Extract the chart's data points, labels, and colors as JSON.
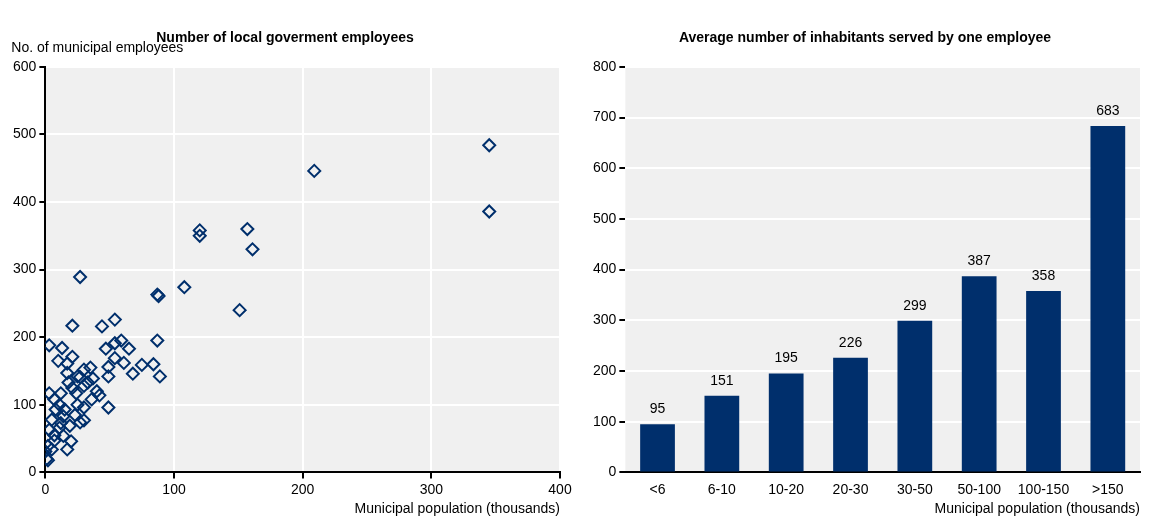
{
  "chart_data": [
    {
      "type": "scatter",
      "title": "Number of local goverment employees",
      "xlabel": "Municipal population (thousands)",
      "ylabel": "No. of municipal employees",
      "x": [
        345,
        345,
        209,
        120,
        120,
        157,
        161,
        108,
        87,
        88,
        151,
        27,
        21,
        44,
        54,
        87,
        89,
        84,
        75,
        68,
        65,
        61,
        59,
        54,
        47,
        49,
        49,
        49,
        54,
        3,
        13,
        10,
        21,
        17,
        30,
        35,
        37,
        27,
        40,
        42,
        36,
        30,
        21,
        18,
        12,
        3,
        7,
        11,
        25,
        30,
        23,
        14,
        5,
        30,
        27,
        19,
        11,
        3,
        14,
        20,
        17,
        5,
        1,
        0,
        2,
        7,
        15,
        8,
        2,
        7,
        12,
        24,
        33,
        25,
        17
      ],
      "values": [
        484,
        386,
        446,
        358,
        350,
        360,
        330,
        274,
        263,
        261,
        240,
        289,
        217,
        216,
        226,
        195,
        142,
        160,
        159,
        146,
        183,
        162,
        195,
        191,
        183,
        156,
        142,
        96,
        169,
        188,
        184,
        165,
        171,
        161,
        152,
        155,
        139,
        141,
        120,
        114,
        108,
        128,
        125,
        133,
        117,
        117,
        108,
        100,
        100,
        96,
        85,
        83,
        78,
        77,
        74,
        69,
        66,
        63,
        54,
        46,
        34,
        34,
        20,
        31,
        39,
        47,
        93,
        93,
        18,
        55,
        73,
        117,
        133,
        142,
        147
      ],
      "color": "#002f6c",
      "marker": "diamond",
      "xlim": [
        0,
        400
      ],
      "xticks": [
        0,
        100,
        200,
        300,
        400
      ],
      "ylim": [
        0,
        600
      ],
      "yticks": [
        0,
        100,
        200,
        300,
        400,
        500,
        600
      ],
      "grid": true,
      "legend": false
    },
    {
      "type": "bar",
      "title": "Average number of inhabitants served by one employee",
      "xlabel": "Municipal population (thousands)",
      "categories": [
        "<6",
        "6-10",
        "10-20",
        "20-30",
        "30-50",
        "50-100",
        "100-150",
        ">150"
      ],
      "values": [
        95,
        151,
        195,
        226,
        299,
        387,
        358,
        683
      ],
      "color": "#002f6c",
      "ylim": [
        0,
        800
      ],
      "yticks": [
        0,
        100,
        200,
        300,
        400,
        500,
        600,
        700,
        800
      ],
      "grid": "y",
      "data_labels": true,
      "legend": false
    }
  ]
}
